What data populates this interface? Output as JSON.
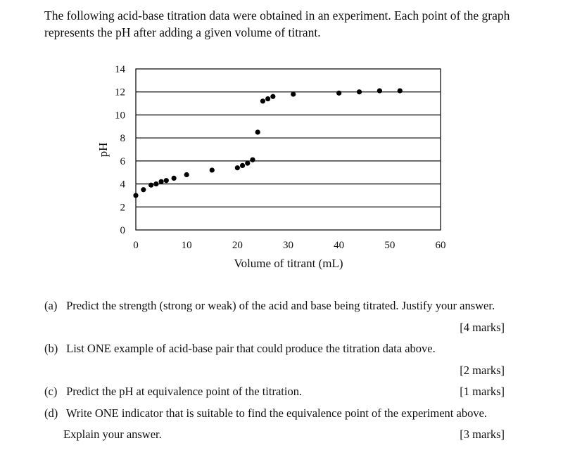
{
  "intro": {
    "line1": "The following acid-base titration data were obtained in an experiment. Each point of the graph",
    "line2": "represents the pH after adding a given volume of titrant."
  },
  "chart_data": {
    "type": "scatter",
    "title": "",
    "xlabel": "Volume of titrant (mL)",
    "ylabel": "pH",
    "xlim": [
      0,
      60
    ],
    "ylim": [
      0,
      14
    ],
    "xticks": [
      0,
      10,
      20,
      30,
      40,
      50,
      60
    ],
    "yticks": [
      0,
      2,
      4,
      6,
      8,
      10,
      12,
      14
    ],
    "grid": "horizontal",
    "legend": null,
    "x": [
      0,
      1.5,
      3,
      4,
      5,
      6,
      7.5,
      10,
      15,
      20,
      21,
      22,
      23,
      24,
      25,
      26,
      27,
      31,
      40,
      44,
      48,
      52
    ],
    "y": [
      3.0,
      3.5,
      3.9,
      4.0,
      4.2,
      4.3,
      4.5,
      4.8,
      5.2,
      5.4,
      5.6,
      5.8,
      6.1,
      8.5,
      11.2,
      11.4,
      11.6,
      11.8,
      11.9,
      12.0,
      12.1,
      12.1
    ]
  },
  "questions": [
    {
      "label": "(a)",
      "text": "Predict the strength (strong or weak) of the acid and base being titrated. Justify your answer.",
      "marks": "[4 marks]"
    },
    {
      "label": "(b)",
      "text": "List ONE example of acid-base pair that could produce the titration data above.",
      "marks": "[2 marks]"
    },
    {
      "label": "(c)",
      "text": "Predict the pH at equivalence point of the titration.",
      "marks": "[1 marks]"
    },
    {
      "label": "(d)",
      "text": "Write ONE indicator that is suitable to find the equivalence point of the experiment above.",
      "continuation": "Explain your answer.",
      "marks": "[3 marks]"
    }
  ]
}
